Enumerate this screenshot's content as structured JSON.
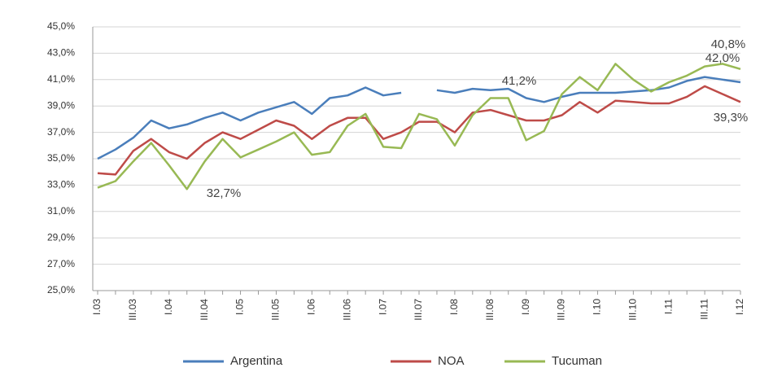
{
  "chart_data": {
    "type": "line",
    "categories": [
      "I.03",
      null,
      "III.03",
      null,
      "I.04",
      null,
      "III.04",
      null,
      "I.05",
      null,
      "III.05",
      null,
      "I.06",
      null,
      "III.06",
      null,
      "I.07",
      null,
      "III.07",
      null,
      "I.08",
      null,
      "III.08",
      null,
      "I.09",
      null,
      "III.09",
      null,
      "I.10",
      null,
      "III.10",
      null,
      "I.11",
      null,
      "III.11",
      null,
      "I.12"
    ],
    "series": [
      {
        "name": "Argentina",
        "color": "#4a7ebb",
        "values": [
          35.0,
          35.7,
          36.6,
          37.9,
          37.3,
          37.6,
          38.1,
          38.5,
          37.9,
          38.5,
          38.9,
          39.3,
          38.4,
          39.6,
          39.8,
          40.4,
          39.8,
          40.0,
          null,
          40.2,
          40.0,
          40.3,
          40.2,
          40.3,
          39.6,
          39.3,
          39.7,
          40.0,
          40.0,
          40.0,
          40.1,
          40.2,
          40.4,
          40.9,
          41.2,
          41.0,
          40.8
        ]
      },
      {
        "name": "NOA",
        "color": "#be4b48",
        "values": [
          33.9,
          33.8,
          35.6,
          36.5,
          35.5,
          35.0,
          36.2,
          37.0,
          36.5,
          37.2,
          37.9,
          37.5,
          36.5,
          37.5,
          38.1,
          38.1,
          36.5,
          37.0,
          37.8,
          37.8,
          37.0,
          38.5,
          38.7,
          38.3,
          37.9,
          37.9,
          38.3,
          39.3,
          38.5,
          39.4,
          39.3,
          39.2,
          39.2,
          39.7,
          40.5,
          39.9,
          39.3
        ]
      },
      {
        "name": "Tucuman",
        "color": "#98b954",
        "values": [
          32.8,
          33.3,
          34.8,
          36.2,
          34.5,
          32.7,
          34.8,
          36.5,
          35.1,
          35.7,
          36.3,
          37.0,
          35.3,
          35.5,
          37.5,
          38.4,
          35.9,
          35.8,
          38.4,
          38.0,
          36.0,
          38.3,
          39.6,
          39.6,
          36.4,
          37.1,
          39.9,
          41.2,
          40.2,
          42.2,
          41.0,
          40.1,
          40.8,
          41.3,
          42.0,
          42.2,
          41.8
        ]
      }
    ],
    "annotations": [
      "32,7%",
      "41,2%",
      "40,8%",
      "42,0%",
      "39,3%"
    ],
    "ylim": [
      25,
      45
    ],
    "yticks": [
      {
        "value": 25,
        "label": "25,0%"
      },
      {
        "value": 27,
        "label": "27,0%"
      },
      {
        "value": 29,
        "label": "29,0%"
      },
      {
        "value": 31,
        "label": "31,0%"
      },
      {
        "value": 33,
        "label": "33,0%"
      },
      {
        "value": 35,
        "label": "35,0%"
      },
      {
        "value": 37,
        "label": "37,0%"
      },
      {
        "value": 39,
        "label": "39,0%"
      },
      {
        "value": 41,
        "label": "41,0%"
      },
      {
        "value": 43,
        "label": "43,0%"
      },
      {
        "value": 45,
        "label": "45,0%"
      }
    ],
    "grid": true,
    "legend": "bottom"
  }
}
